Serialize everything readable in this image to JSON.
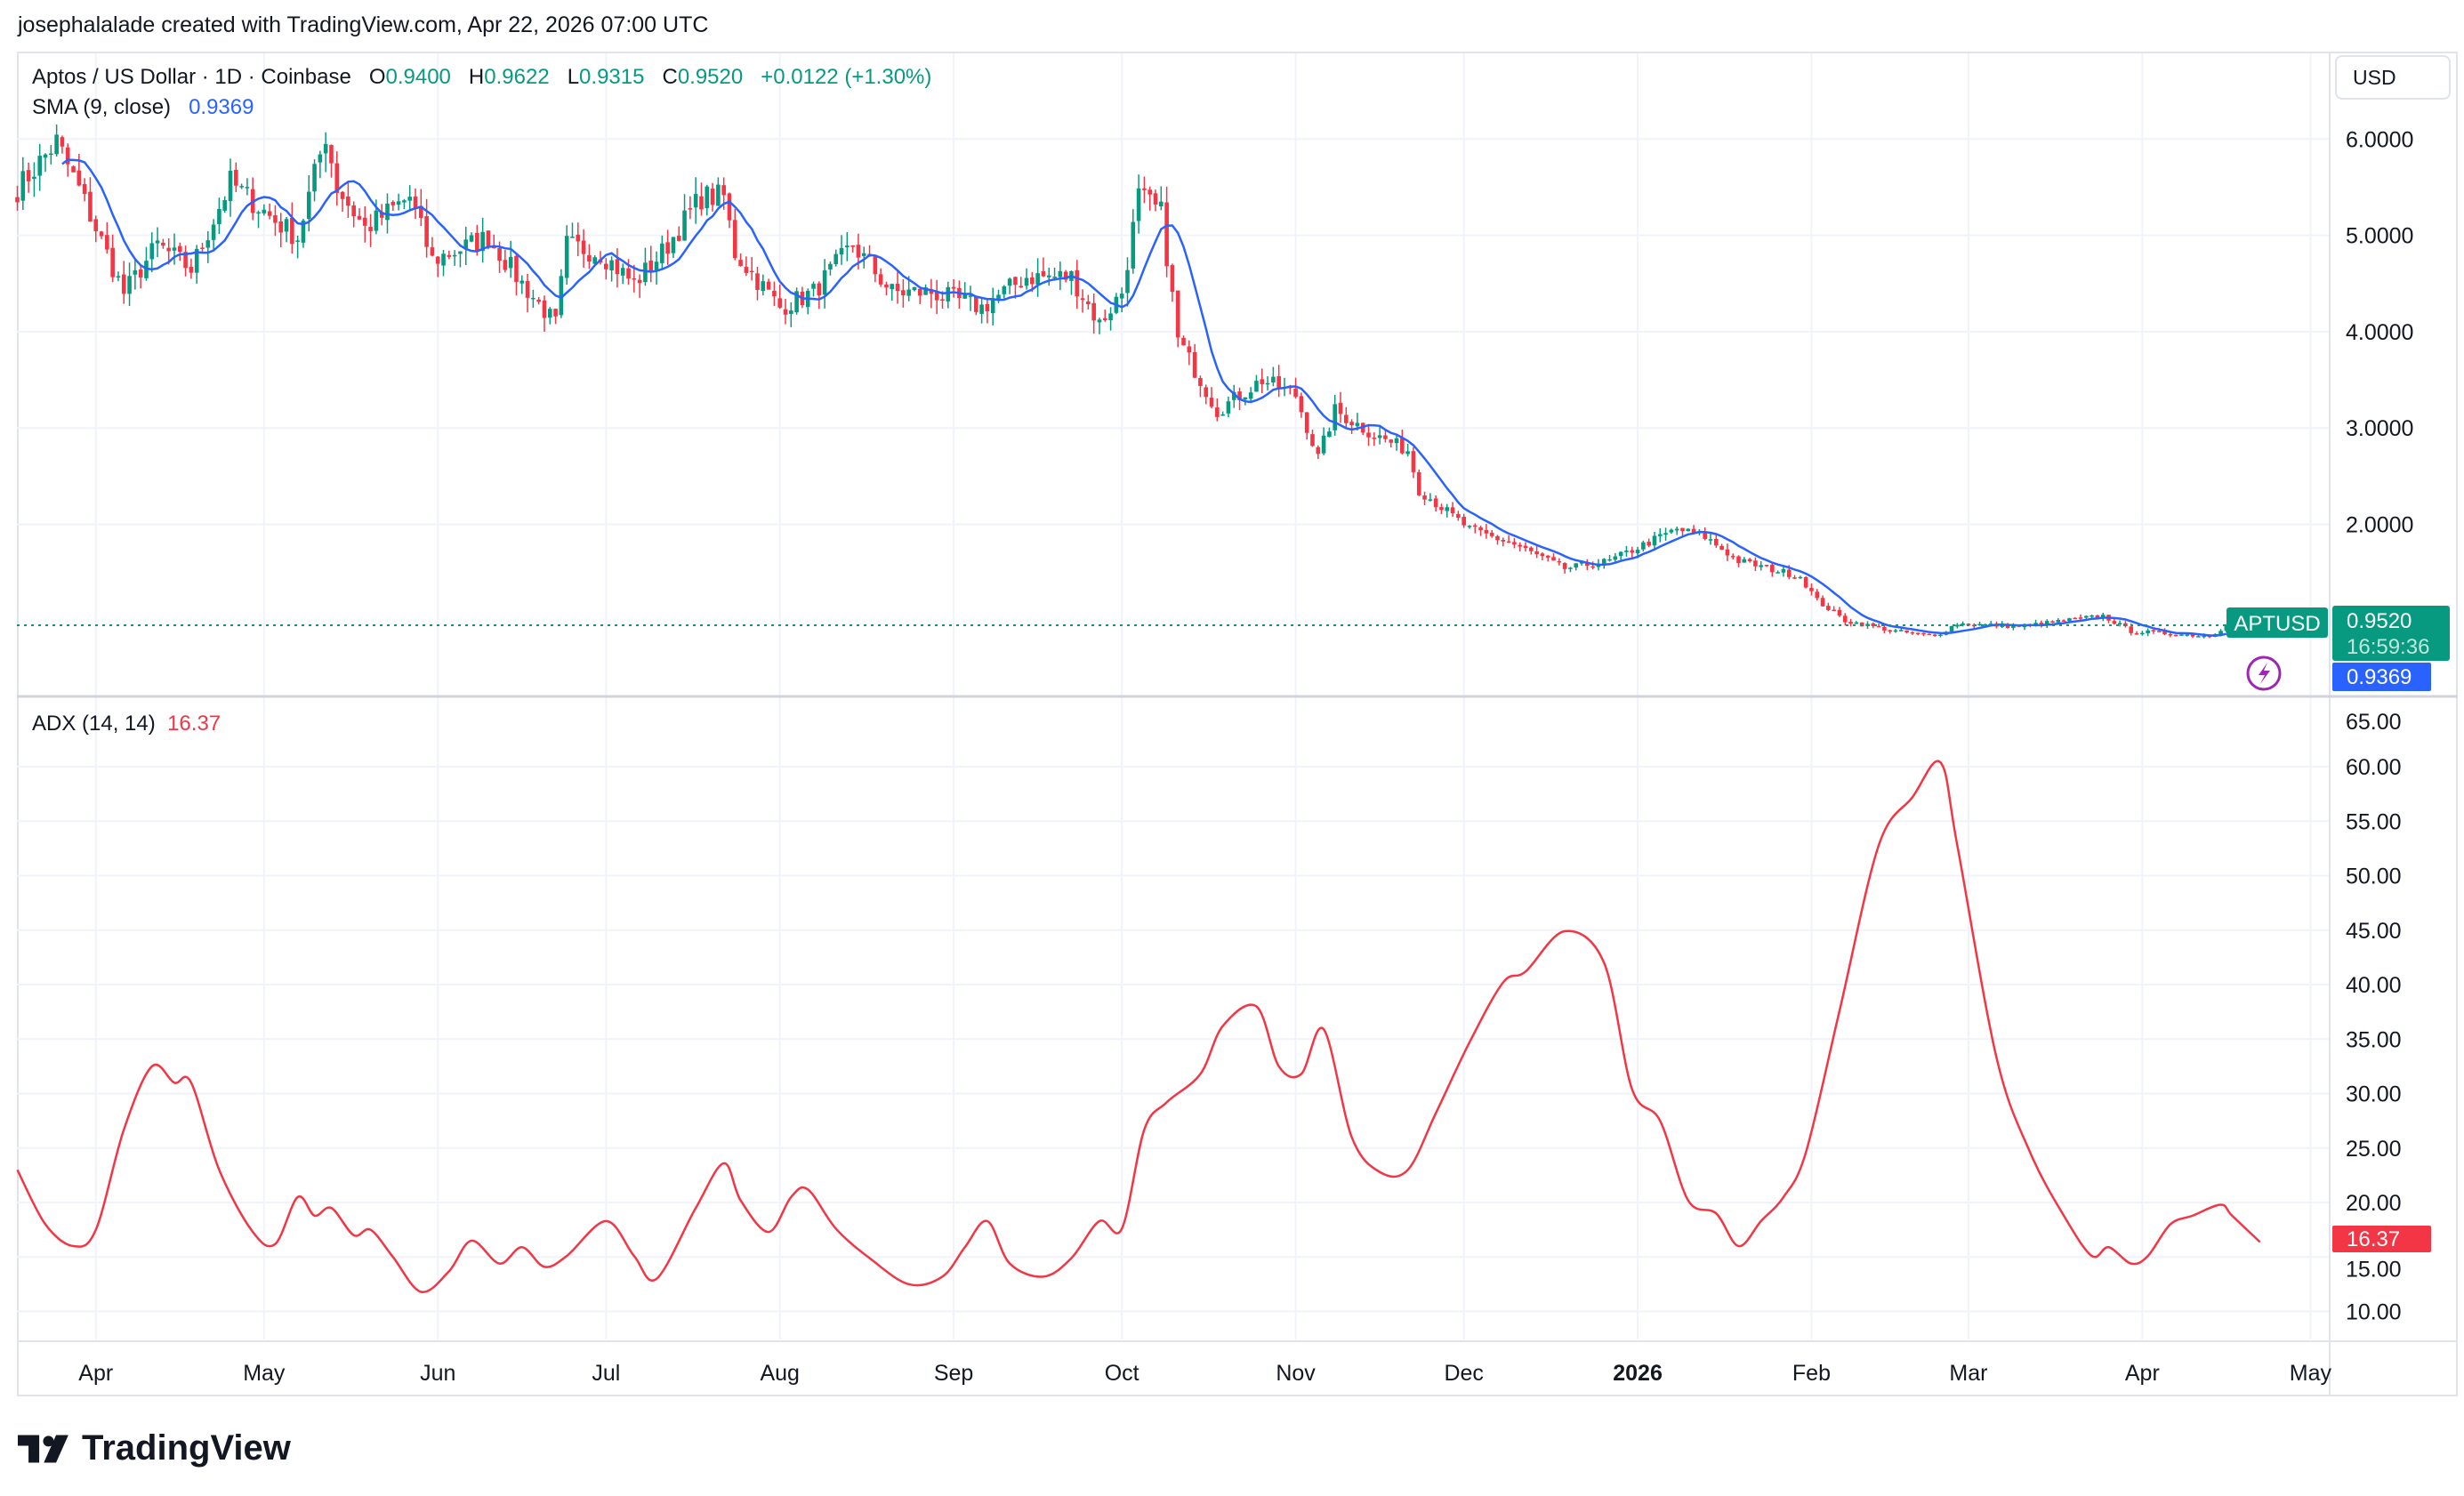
{
  "credit": "josephalalade created with TradingView.com, Apr 22, 2026 07:00 UTC",
  "legend": {
    "symbol": "Aptos / US Dollar · 1D · Coinbase",
    "o_label": "O",
    "o": "0.9400",
    "h_label": "H",
    "h": "0.9622",
    "l_label": "L",
    "l": "0.9315",
    "c_label": "C",
    "c": "0.9520",
    "change": "+0.0122 (+1.30%)",
    "sma_label": "SMA (9, close)",
    "sma_value": "0.9369"
  },
  "currency_button": "USD",
  "adx_legend": {
    "label": "ADX (14, 14)",
    "value": "16.37"
  },
  "price_tags": {
    "symbol": "APTUSD",
    "last": "0.9520",
    "countdown": "16:59:36",
    "sma": "0.9369",
    "adx": "16.37"
  },
  "logo": "TradingView",
  "colors": {
    "up": "#089981",
    "down": "#f23645",
    "sma": "#2962ff",
    "adx": "#f23645"
  },
  "chart_data": [
    {
      "type": "candlestick",
      "title": "Aptos / US Dollar · 1D · Coinbase",
      "ylim": [
        0.4,
        6.6
      ],
      "yticks": [
        "6.0000",
        "5.0000",
        "4.0000",
        "3.0000",
        "2.0000"
      ],
      "day0": "2025-03-14",
      "close_anchors": [
        [
          0,
          5.48
        ],
        [
          7,
          5.97
        ],
        [
          11,
          5.48
        ],
        [
          19,
          4.4
        ],
        [
          25,
          4.9
        ],
        [
          31,
          4.65
        ],
        [
          38,
          5.55
        ],
        [
          46,
          5.15
        ],
        [
          50,
          4.98
        ],
        [
          55,
          6.05
        ],
        [
          57,
          5.5
        ],
        [
          62,
          5.07
        ],
        [
          70,
          5.4
        ],
        [
          74,
          4.74
        ],
        [
          84,
          4.98
        ],
        [
          90,
          4.5
        ],
        [
          96,
          4.08
        ],
        [
          98,
          4.9
        ],
        [
          104,
          4.82
        ],
        [
          110,
          4.5
        ],
        [
          115,
          4.82
        ],
        [
          122,
          5.4
        ],
        [
          126,
          5.4
        ],
        [
          128,
          4.82
        ],
        [
          136,
          4.25
        ],
        [
          142,
          4.41
        ],
        [
          149,
          4.9
        ],
        [
          156,
          4.41
        ],
        [
          163,
          4.41
        ],
        [
          172,
          4.25
        ],
        [
          180,
          4.57
        ],
        [
          188,
          4.57
        ],
        [
          193,
          4.08
        ],
        [
          197,
          4.41
        ],
        [
          200,
          5.4
        ],
        [
          204,
          5.23
        ],
        [
          207,
          3.92
        ],
        [
          211,
          3.5
        ],
        [
          214,
          3.18
        ],
        [
          222,
          3.5
        ],
        [
          228,
          3.34
        ],
        [
          232,
          2.69
        ],
        [
          235,
          3.18
        ],
        [
          242,
          2.93
        ],
        [
          248,
          2.77
        ],
        [
          250,
          2.36
        ],
        [
          259,
          1.95
        ],
        [
          267,
          1.79
        ],
        [
          276,
          1.54
        ],
        [
          284,
          1.62
        ],
        [
          293,
          1.87
        ],
        [
          296,
          1.95
        ],
        [
          301,
          1.87
        ],
        [
          307,
          1.62
        ],
        [
          318,
          1.46
        ],
        [
          321,
          1.21
        ],
        [
          326,
          1.0
        ],
        [
          335,
          0.89
        ],
        [
          342,
          0.84
        ],
        [
          346,
          0.97
        ],
        [
          357,
          0.94
        ],
        [
          372,
          1.05
        ],
        [
          377,
          0.89
        ],
        [
          391,
          0.84
        ],
        [
          394,
          0.952
        ]
      ],
      "sma_period": 9,
      "last_price": 0.952
    },
    {
      "type": "line",
      "title": "ADX (14, 14)",
      "ylim": [
        6,
        65
      ],
      "yticks": [
        "65.00",
        "60.00",
        "55.00",
        "50.00",
        "45.00",
        "40.00",
        "35.00",
        "30.00",
        "25.00",
        "20.00",
        "15.00",
        "10.00"
      ],
      "points": [
        [
          0,
          23
        ],
        [
          5,
          18
        ],
        [
          10,
          16
        ],
        [
          14,
          17.5
        ],
        [
          19,
          26.7
        ],
        [
          24,
          32.5
        ],
        [
          28,
          31
        ],
        [
          31,
          31
        ],
        [
          36,
          23
        ],
        [
          42,
          17.3
        ],
        [
          46,
          16.2
        ],
        [
          50,
          20.5
        ],
        [
          53,
          18.8
        ],
        [
          56,
          19.5
        ],
        [
          60,
          17
        ],
        [
          63,
          17.5
        ],
        [
          67,
          15
        ],
        [
          72,
          11.8
        ],
        [
          77,
          13.7
        ],
        [
          81,
          16.5
        ],
        [
          86,
          14.4
        ],
        [
          90,
          15.9
        ],
        [
          94,
          14.1
        ],
        [
          98,
          15.1
        ],
        [
          105,
          18.3
        ],
        [
          110,
          15.1
        ],
        [
          114,
          13
        ],
        [
          121,
          19.5
        ],
        [
          126,
          23.6
        ],
        [
          129,
          20.2
        ],
        [
          134,
          17.3
        ],
        [
          138,
          20.5
        ],
        [
          141,
          21.2
        ],
        [
          146,
          17.6
        ],
        [
          152,
          14.9
        ],
        [
          159,
          12.5
        ],
        [
          165,
          13.2
        ],
        [
          169,
          15.9
        ],
        [
          173,
          18.3
        ],
        [
          177,
          14.4
        ],
        [
          183,
          13.2
        ],
        [
          188,
          14.9
        ],
        [
          193,
          18.3
        ],
        [
          197,
          17.6
        ],
        [
          201,
          26.7
        ],
        [
          205,
          29.2
        ],
        [
          211,
          31.8
        ],
        [
          215,
          36.2
        ],
        [
          221,
          38
        ],
        [
          225,
          32.5
        ],
        [
          229,
          31.8
        ],
        [
          233,
          35.9
        ],
        [
          238,
          26
        ],
        [
          243,
          22.8
        ],
        [
          248,
          23
        ],
        [
          253,
          28.2
        ],
        [
          259,
          34.7
        ],
        [
          265,
          40.2
        ],
        [
          269,
          41.2
        ],
        [
          276,
          44.9
        ],
        [
          283,
          42
        ],
        [
          288,
          30.4
        ],
        [
          293,
          27.5
        ],
        [
          298,
          20.2
        ],
        [
          303,
          19
        ],
        [
          307,
          16
        ],
        [
          311,
          18.3
        ],
        [
          315,
          20.5
        ],
        [
          319,
          24.6
        ],
        [
          325,
          37.6
        ],
        [
          332,
          52.8
        ],
        [
          338,
          57.2
        ],
        [
          343,
          60.4
        ],
        [
          346,
          52.8
        ],
        [
          353,
          33.3
        ],
        [
          359,
          24.6
        ],
        [
          365,
          18.8
        ],
        [
          370,
          15.1
        ],
        [
          373,
          15.9
        ],
        [
          377,
          14.4
        ],
        [
          380,
          15.1
        ],
        [
          384,
          18
        ],
        [
          388,
          18.8
        ],
        [
          393,
          19.8
        ],
        [
          395,
          18.8
        ],
        [
          400,
          16.37
        ]
      ]
    }
  ],
  "x_axis": {
    "ticks": [
      {
        "day": 14,
        "label": "Apr"
      },
      {
        "day": 44,
        "label": "May"
      },
      {
        "day": 75,
        "label": "Jun"
      },
      {
        "day": 105,
        "label": "Jul"
      },
      {
        "day": 136,
        "label": "Aug"
      },
      {
        "day": 167,
        "label": "Sep"
      },
      {
        "day": 197,
        "label": "Oct"
      },
      {
        "day": 228,
        "label": "Nov"
      },
      {
        "day": 258,
        "label": "Dec"
      },
      {
        "day": 289,
        "label": "2026",
        "bold": true
      },
      {
        "day": 320,
        "label": "Feb"
      },
      {
        "day": 348,
        "label": "Mar"
      },
      {
        "day": 379,
        "label": "Apr"
      },
      {
        "day": 409,
        "label": "May"
      }
    ]
  }
}
